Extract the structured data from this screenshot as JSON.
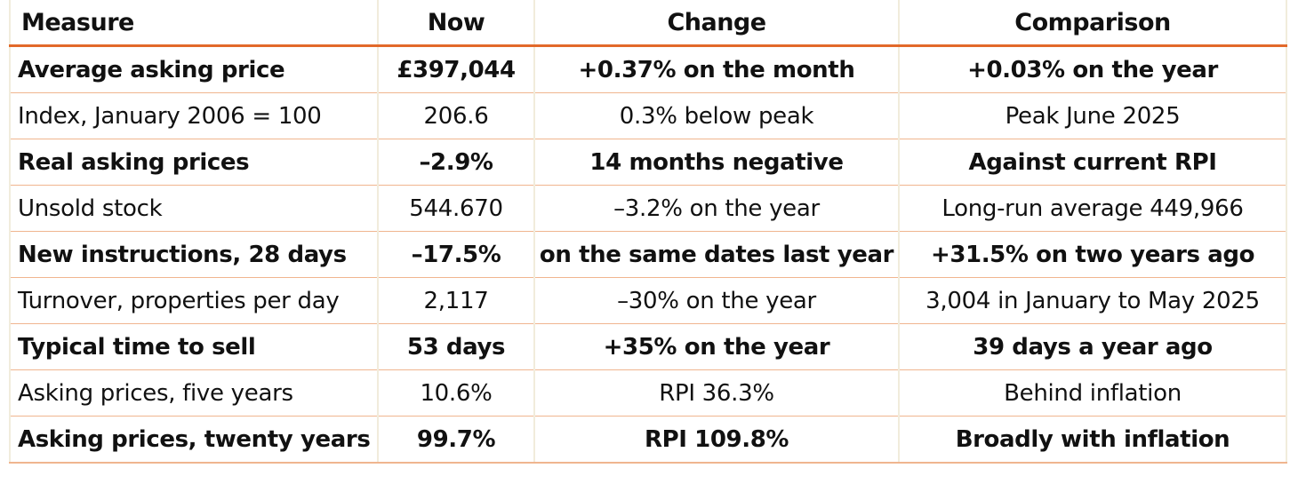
{
  "table": {
    "headers": [
      "Measure",
      "Now",
      "Change",
      "Comparison"
    ],
    "rows": [
      {
        "bold": true,
        "cells": [
          "Average asking price",
          "£397,044",
          "+0.37% on the month",
          "+0.03% on the year"
        ]
      },
      {
        "bold": false,
        "cells": [
          "Index, January 2006 = 100",
          "206.6",
          "0.3% below peak",
          "Peak June 2025"
        ]
      },
      {
        "bold": true,
        "cells": [
          "Real asking prices",
          "–2.9%",
          "14 months negative",
          "Against current RPI"
        ]
      },
      {
        "bold": false,
        "cells": [
          "Unsold stock",
          "544.670",
          "–3.2% on the year",
          "Long-run average 449,966"
        ]
      },
      {
        "bold": true,
        "cells": [
          "New instructions, 28 days",
          "–17.5%",
          "on the same dates last year",
          "+31.5% on two years ago"
        ]
      },
      {
        "bold": false,
        "cells": [
          "Turnover, properties per day",
          "2,117",
          "–30% on the year",
          "3,004 in January to May 2025"
        ]
      },
      {
        "bold": true,
        "cells": [
          "Typical time to sell",
          "53 days",
          "+35% on the year",
          "39 days a year ago"
        ]
      },
      {
        "bold": false,
        "cells": [
          "Asking prices, five years",
          "10.6%",
          "RPI 36.3%",
          "Behind inflation"
        ]
      },
      {
        "bold": true,
        "cells": [
          "Asking prices, twenty years",
          "99.7%",
          "RPI 109.8%",
          "Broadly with inflation"
        ]
      }
    ]
  },
  "colors": {
    "header_rule": "#e2692a",
    "row_rule": "#f0b58f",
    "column_rule": "#f1ecdc"
  }
}
